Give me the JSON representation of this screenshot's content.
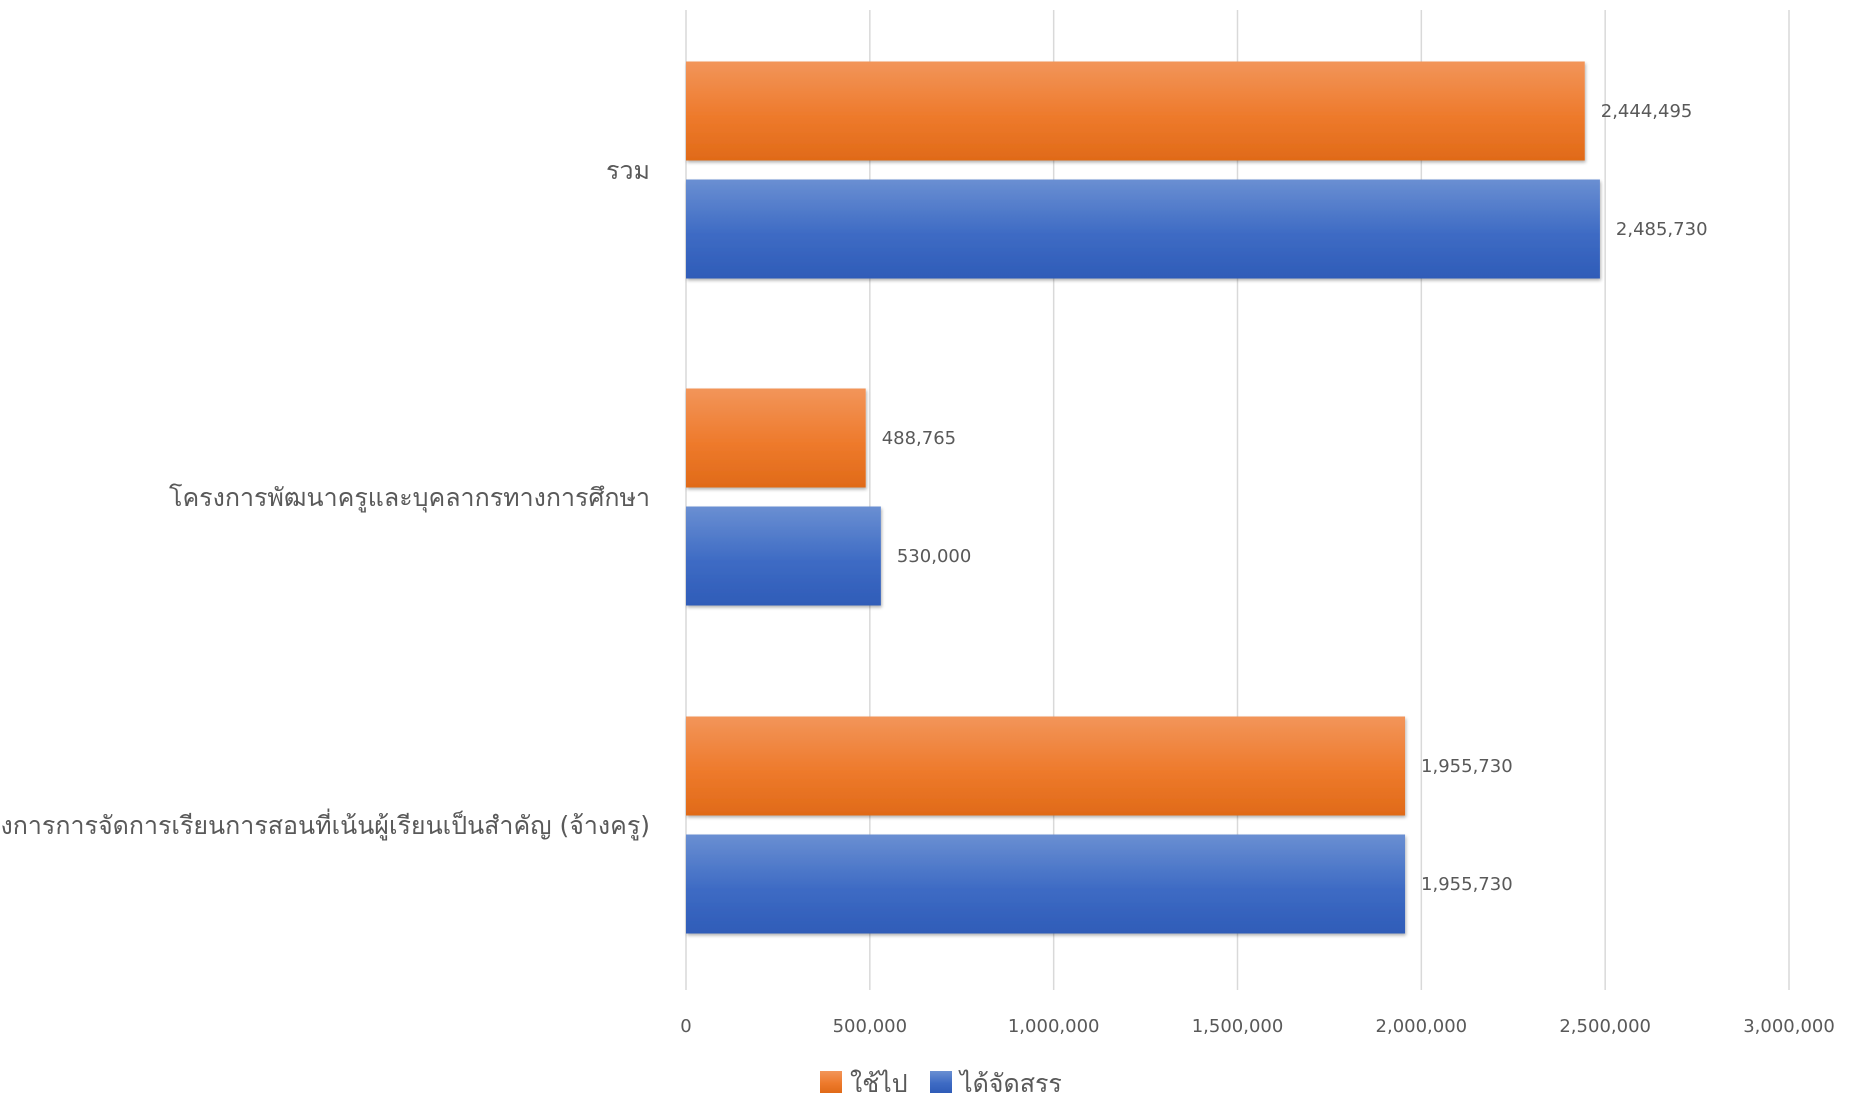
{
  "chart_data": {
    "type": "bar",
    "orientation": "horizontal",
    "categories": [
      "รวม",
      "โครงการพัฒนาครูและบุคลากรทางการศึกษา",
      "โครงการการจัดการเรียนการสอนที่เน้นผู้เรียนเป็นสำคัญ (จ้างครู)"
    ],
    "series": [
      {
        "name": "ใช้ไป",
        "color": "#ED7D31",
        "values": [
          2444495,
          488765,
          1955730
        ],
        "labels": [
          "2,444,495",
          "488,765",
          "1,955,730"
        ]
      },
      {
        "name": "ได้จัดสรร",
        "color": "#4472C4",
        "values": [
          2485730,
          530000,
          1955730
        ],
        "labels": [
          "2,485,730",
          "530,000",
          "1,955,730"
        ]
      }
    ],
    "xlim": [
      0,
      3000000
    ],
    "x_ticks": [
      0,
      500000,
      1000000,
      1500000,
      2000000,
      2500000,
      3000000
    ],
    "x_tick_labels": [
      "0",
      "500,000",
      "1,000,000",
      "1,500,000",
      "2,000,000",
      "2,500,000",
      "3,000,000"
    ],
    "grid": "vertical",
    "legend_position": "bottom",
    "title": "",
    "xlabel": "",
    "ylabel": ""
  }
}
